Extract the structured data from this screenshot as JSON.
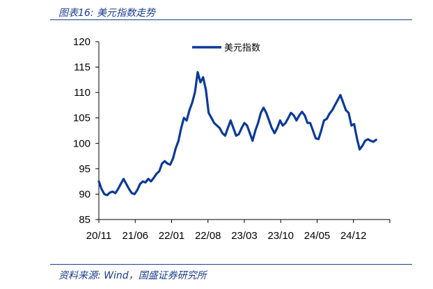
{
  "figure_title": "图表16:  美元指数走势",
  "source": "资料来源:  Wind，国盛证券研究所",
  "colors": {
    "series": "#0a3a99",
    "frame": "#1a3d8f",
    "axis": "#000000"
  },
  "chart_data": {
    "type": "line",
    "title": "",
    "xlabel": "",
    "ylabel": "",
    "ylim": [
      85,
      120
    ],
    "yticks": [
      85,
      90,
      95,
      100,
      105,
      110,
      115,
      120
    ],
    "ytick_labels": [
      "85",
      "90",
      "95",
      "100",
      "105",
      "110",
      "115",
      "120"
    ],
    "xtick_labels": [
      "20/11",
      "21/06",
      "22/01",
      "22/08",
      "23/03",
      "23/10",
      "24/05",
      "24/12"
    ],
    "xlim": [
      0,
      53
    ],
    "legend": {
      "placement": "top-center",
      "entries": [
        "美元指数"
      ]
    },
    "grid": false,
    "series": [
      {
        "name": "美元指数",
        "x": [
          0,
          0.5,
          1,
          1.5,
          2,
          2.5,
          3,
          3.5,
          4,
          4.5,
          5,
          5.5,
          6,
          6.5,
          7,
          7.5,
          8,
          8.5,
          9,
          9.5,
          10,
          10.5,
          11,
          11.5,
          12,
          12.5,
          13,
          13.5,
          14,
          14.5,
          15,
          15.5,
          16,
          16.5,
          17,
          17.5,
          18,
          18.5,
          19,
          19.5,
          20,
          20.5,
          21,
          21.5,
          22,
          22.5,
          23,
          23.5,
          24,
          24.5,
          25,
          25.5,
          26,
          26.5,
          27,
          27.5,
          28,
          28.5,
          29,
          29.5,
          30,
          30.5,
          31,
          31.5,
          32,
          32.5,
          33,
          33.5,
          34,
          34.5,
          35,
          35.5,
          36,
          36.5,
          37,
          37.5,
          38,
          38.5,
          39,
          39.5,
          40,
          40.5,
          41,
          41.5,
          42,
          42.5,
          43,
          43.5,
          44,
          44.5,
          45,
          45.5,
          46,
          46.5,
          47,
          47.5,
          48,
          48.5,
          49,
          49.5,
          50,
          50.5
        ],
        "values": [
          92.5,
          91.0,
          90.0,
          89.8,
          90.3,
          90.5,
          90.2,
          91.0,
          92.0,
          93.0,
          92.0,
          91.0,
          90.2,
          90.0,
          90.8,
          92.0,
          92.5,
          92.3,
          93.0,
          92.5,
          93.2,
          94.0,
          94.5,
          96.0,
          96.5,
          96.0,
          95.8,
          97.0,
          99.0,
          100.5,
          103.0,
          105.0,
          104.5,
          106.5,
          108.0,
          110.0,
          114.0,
          112.0,
          113.0,
          110.5,
          106.0,
          105.0,
          104.0,
          103.5,
          103.0,
          102.0,
          101.5,
          103.0,
          104.5,
          103.0,
          101.5,
          101.8,
          103.0,
          104.0,
          103.5,
          102.0,
          100.5,
          102.5,
          104.0,
          106.0,
          107.0,
          106.0,
          104.5,
          103.0,
          102.0,
          103.0,
          104.5,
          103.5,
          104.0,
          105.0,
          106.0,
          105.5,
          104.5,
          105.5,
          106.2,
          105.5,
          104.0,
          104.0,
          102.5,
          101.0,
          100.8,
          102.5,
          104.5,
          104.8,
          105.8,
          106.5,
          107.5,
          108.5,
          109.5,
          108.0,
          106.5,
          106.0,
          103.5,
          103.8,
          101.0,
          98.8,
          99.5,
          100.5,
          100.8,
          100.5,
          100.3,
          100.7
        ]
      }
    ]
  }
}
